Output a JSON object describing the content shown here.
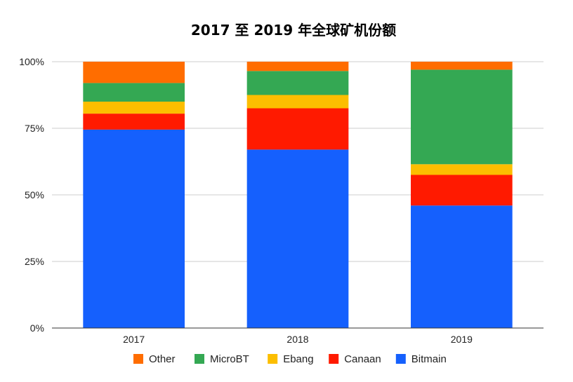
{
  "chart_data": {
    "type": "bar",
    "stacked": true,
    "title": "2017 至 2019 年全球矿机份额",
    "categories": [
      "2017",
      "2018",
      "2019"
    ],
    "yticks": [
      "0%",
      "25%",
      "50%",
      "75%",
      "100%"
    ],
    "ylim": [
      0,
      100
    ],
    "grid": true,
    "legend_position": "bottom",
    "series": [
      {
        "name": "Bitmain",
        "color": "#1560fd",
        "values": [
          74.5,
          67,
          46
        ]
      },
      {
        "name": "Canaan",
        "color": "#ff1a00",
        "values": [
          6,
          15.5,
          11.5
        ]
      },
      {
        "name": "Ebang",
        "color": "#fcbe00",
        "values": [
          4.5,
          5,
          4
        ]
      },
      {
        "name": "MicroBT",
        "color": "#34a853",
        "values": [
          7,
          9,
          35.5
        ]
      },
      {
        "name": "Other",
        "color": "#ff6d00",
        "values": [
          8,
          3.5,
          3
        ]
      }
    ],
    "legend_order": [
      "Other",
      "MicroBT",
      "Ebang",
      "Canaan",
      "Bitmain"
    ]
  }
}
